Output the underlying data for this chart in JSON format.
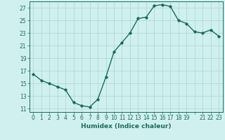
{
  "x": [
    0,
    1,
    2,
    3,
    4,
    5,
    6,
    7,
    8,
    9,
    10,
    11,
    12,
    13,
    14,
    15,
    16,
    17,
    18,
    19,
    20,
    21,
    22,
    23
  ],
  "y": [
    16.5,
    15.5,
    15.0,
    14.5,
    14.0,
    12.0,
    11.5,
    11.3,
    12.5,
    16.0,
    20.0,
    21.5,
    23.0,
    25.3,
    25.5,
    27.3,
    27.5,
    27.2,
    25.0,
    24.5,
    23.2,
    23.0,
    23.5,
    22.5
  ],
  "line_color": "#1a6b5a",
  "marker": "D",
  "marker_size": 1.8,
  "bg_color": "#d0f0f0",
  "grid_color": "#b0d8d8",
  "xlabel": "Humidex (Indice chaleur)",
  "xlabel_fontsize": 6.5,
  "yticks": [
    11,
    13,
    15,
    17,
    19,
    21,
    23,
    25,
    27
  ],
  "xticks": [
    0,
    1,
    2,
    3,
    4,
    5,
    6,
    7,
    8,
    9,
    10,
    11,
    12,
    13,
    14,
    15,
    16,
    17,
    18,
    19,
    20,
    21,
    22,
    23
  ],
  "xtick_labels": [
    "0",
    "1",
    "2",
    "3",
    "4",
    "5",
    "6",
    "7",
    "8",
    "9",
    "10",
    "11",
    "12",
    "13",
    "14",
    "15",
    "16",
    "17",
    "18",
    "19",
    "",
    "21",
    "22",
    "23"
  ],
  "xlim": [
    -0.5,
    23.5
  ],
  "ylim": [
    10.5,
    28.0
  ],
  "tick_fontsize": 5.5,
  "line_width": 1.0
}
